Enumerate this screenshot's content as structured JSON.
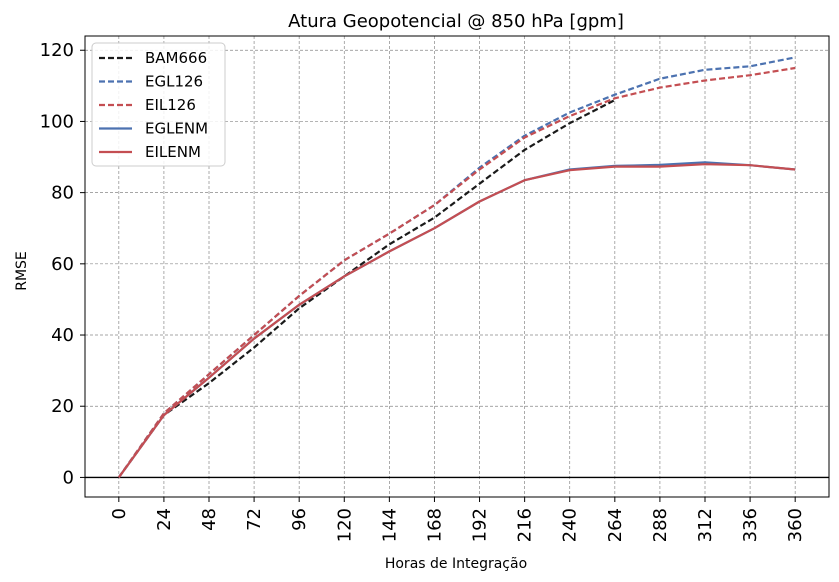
{
  "chart_data": {
    "type": "line",
    "title": "Atura Geopotencial @ 850 hPa [gpm]",
    "xlabel": "Horas de Integração",
    "ylabel": "RMSE",
    "x": [
      0,
      24,
      48,
      72,
      96,
      120,
      144,
      168,
      192,
      216,
      240,
      264,
      288,
      312,
      336,
      360
    ],
    "xlim": [
      -18,
      378
    ],
    "ylim": [
      -5.5,
      124
    ],
    "yticks": [
      0,
      20,
      40,
      60,
      80,
      100,
      120
    ],
    "grid": true,
    "legend_position": "top-left",
    "series": [
      {
        "name": "BAM666",
        "style": "dashed",
        "color": "#1a1a1a",
        "values": [
          0,
          17.5,
          26.5,
          36.5,
          47.5,
          56.5,
          65.5,
          73,
          82.5,
          92,
          99.5,
          106,
          null,
          null,
          null,
          null
        ]
      },
      {
        "name": "EGL126",
        "style": "dashed",
        "color": "#4c72b0",
        "values": [
          0,
          18,
          29,
          40,
          51,
          61,
          68.5,
          76.5,
          87,
          96,
          102.5,
          107.5,
          112,
          114.5,
          115.5,
          118
        ]
      },
      {
        "name": "EIL126",
        "style": "dashed",
        "color": "#c44e52",
        "values": [
          0,
          18,
          29,
          40,
          51,
          61,
          68.5,
          76.5,
          86.5,
          95.5,
          101.5,
          106.5,
          109.5,
          111.5,
          113,
          115
        ]
      },
      {
        "name": "EGLENM",
        "style": "solid",
        "color": "#4c72b0",
        "values": [
          0,
          17.5,
          28,
          39,
          48.5,
          56.5,
          63.5,
          70,
          77.5,
          83.5,
          86.5,
          87.5,
          87.8,
          88.5,
          87.7,
          86.5
        ]
      },
      {
        "name": "EILENM",
        "style": "solid",
        "color": "#c44e52",
        "values": [
          0,
          17.5,
          28,
          39,
          48.5,
          56.5,
          63.5,
          70,
          77.5,
          83.5,
          86.3,
          87.3,
          87.3,
          88,
          87.7,
          86.5
        ]
      }
    ]
  }
}
